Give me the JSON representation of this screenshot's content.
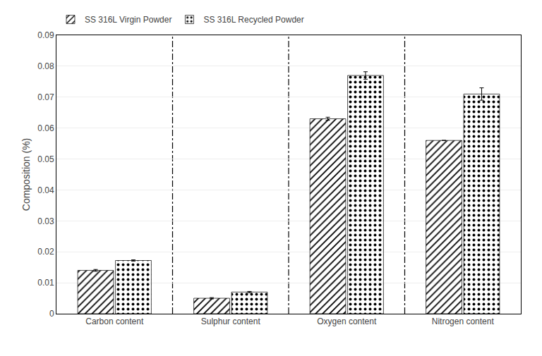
{
  "chart_data": {
    "type": "bar",
    "categories": [
      "Carbon content",
      "Sulphur content",
      "Oxygen content",
      "Nitrogen content"
    ],
    "series": [
      {
        "name": "SS 316L Virgin Powder",
        "color": "#87CEEB",
        "values": [
          0.014,
          0.005,
          0.063,
          0.056
        ],
        "errors": [
          0.0003,
          0.0002,
          0.0005,
          0.0
        ]
      },
      {
        "name": "SS 316L Recycled Powder",
        "color": "#7DC832",
        "values": [
          0.0172,
          0.007,
          0.077,
          0.071
        ],
        "errors": [
          0.0002,
          0.0002,
          0.0012,
          0.002
        ]
      }
    ],
    "ylabel": "Composition (%)",
    "ylim": [
      0,
      0.09
    ],
    "yticks": [
      0,
      0.01,
      0.02,
      0.03,
      0.04,
      0.05,
      0.06,
      0.07,
      0.08,
      0.09
    ],
    "grid": true,
    "legend": "upper left"
  }
}
